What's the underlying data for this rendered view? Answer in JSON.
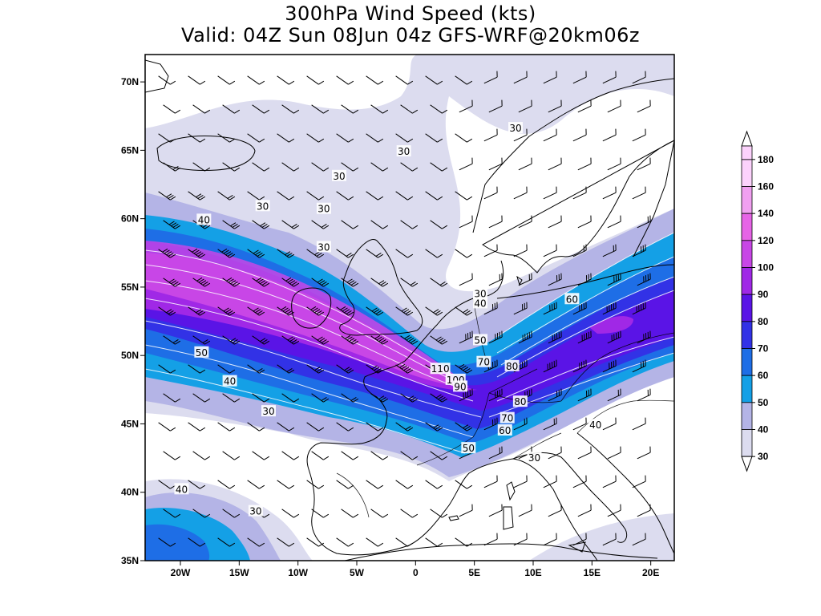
{
  "title": {
    "line1": "300hPa Wind Speed (kts)",
    "line2": "Valid: 04Z Sun 08Jun 04z GFS-WRF@20km06z"
  },
  "map": {
    "lon_range": [
      -23,
      22
    ],
    "lat_range": [
      35,
      72
    ],
    "lat_ticks": [
      {
        "lat": 70,
        "label": "70N"
      },
      {
        "lat": 65,
        "label": "65N"
      },
      {
        "lat": 60,
        "label": "60N"
      },
      {
        "lat": 55,
        "label": "55N"
      },
      {
        "lat": 50,
        "label": "50N"
      },
      {
        "lat": 45,
        "label": "45N"
      },
      {
        "lat": 40,
        "label": "40N"
      },
      {
        "lat": 35,
        "label": "35N"
      }
    ],
    "lon_ticks": [
      {
        "lon": -20,
        "label": "20W"
      },
      {
        "lon": -15,
        "label": "15W"
      },
      {
        "lon": -10,
        "label": "10W"
      },
      {
        "lon": -5,
        "label": "5W"
      },
      {
        "lon": 0,
        "label": "0"
      },
      {
        "lon": 5,
        "label": "5E"
      },
      {
        "lon": 10,
        "label": "10E"
      },
      {
        "lon": 15,
        "label": "15E"
      },
      {
        "lon": 20,
        "label": "20E"
      }
    ],
    "contour_labels": [
      {
        "text": "30",
        "lon": 8.5,
        "lat": 66.6
      },
      {
        "text": "30",
        "lon": -1,
        "lat": 64.9
      },
      {
        "text": "30",
        "lon": -6.5,
        "lat": 63.1
      },
      {
        "text": "30",
        "lon": -13,
        "lat": 60.9
      },
      {
        "text": "30",
        "lon": -7.8,
        "lat": 60.7
      },
      {
        "text": "40",
        "lon": -18,
        "lat": 59.9
      },
      {
        "text": "30",
        "lon": -7.8,
        "lat": 57.9
      },
      {
        "text": "30",
        "lon": 5.5,
        "lat": 54.5
      },
      {
        "text": "40",
        "lon": 5.5,
        "lat": 53.8
      },
      {
        "text": "60",
        "lon": 13.3,
        "lat": 54.1
      },
      {
        "text": "50",
        "lon": 5.5,
        "lat": 51.1
      },
      {
        "text": "50",
        "lon": -18.2,
        "lat": 50.2
      },
      {
        "text": "70",
        "lon": 5.8,
        "lat": 49.5
      },
      {
        "text": "80",
        "lon": 8.2,
        "lat": 49.2
      },
      {
        "text": "110",
        "lon": 2.1,
        "lat": 49.0
      },
      {
        "text": "100",
        "lon": 3.4,
        "lat": 48.2
      },
      {
        "text": "90",
        "lon": 3.8,
        "lat": 47.7
      },
      {
        "text": "40",
        "lon": -15.8,
        "lat": 48.1
      },
      {
        "text": "80",
        "lon": 8.9,
        "lat": 46.6
      },
      {
        "text": "30",
        "lon": -12.5,
        "lat": 45.9
      },
      {
        "text": "70",
        "lon": 7.8,
        "lat": 45.4
      },
      {
        "text": "60",
        "lon": 7.6,
        "lat": 44.5
      },
      {
        "text": "40",
        "lon": 15.3,
        "lat": 44.9
      },
      {
        "text": "50",
        "lon": 4.5,
        "lat": 43.2
      },
      {
        "text": "30",
        "lon": 10.1,
        "lat": 42.5
      },
      {
        "text": "40",
        "lon": -19.9,
        "lat": 40.2
      },
      {
        "text": "30",
        "lon": -13.6,
        "lat": 38.6
      }
    ]
  },
  "legend": {
    "levels": [
      "30",
      "40",
      "50",
      "60",
      "70",
      "80",
      "90",
      "100",
      "120",
      "140",
      "160",
      "180"
    ],
    "colors": [
      "#ffffff",
      "#dcdcef",
      "#b4b4e6",
      "#14a0e6",
      "#1e6ee6",
      "#3232e6",
      "#5a14e6",
      "#a028e6",
      "#c846e6",
      "#e664e6",
      "#f0a0f0",
      "#fcd2fc",
      "#ffffff"
    ]
  }
}
